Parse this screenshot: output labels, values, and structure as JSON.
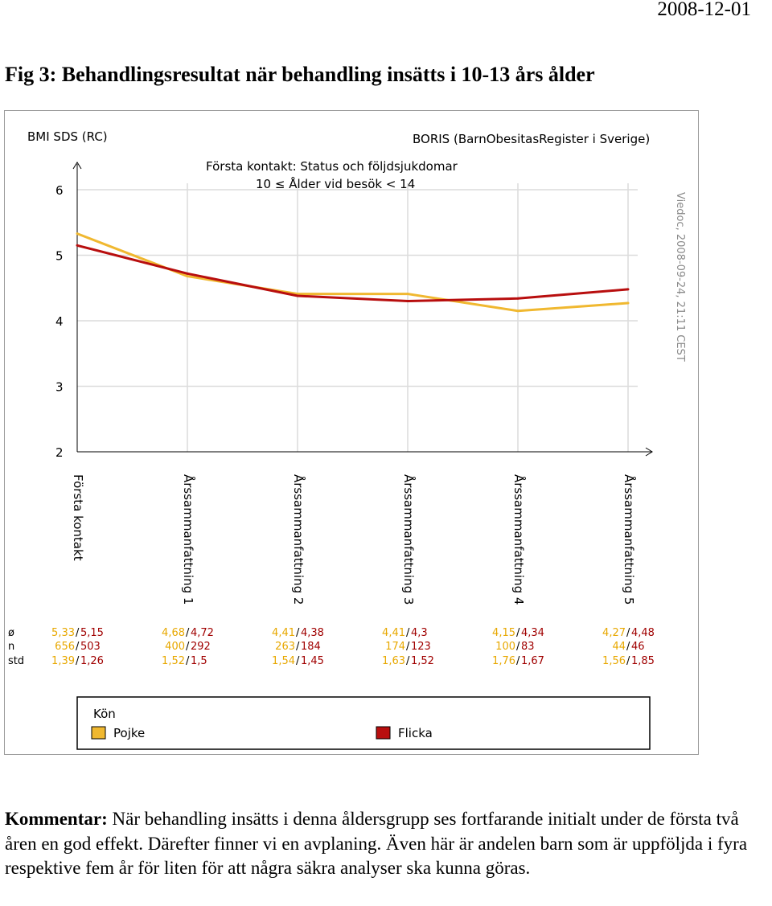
{
  "header": {
    "date": "2008-12-01"
  },
  "figure": {
    "title": "Fig 3: Behandlingsresultat när behandling insätts i 10-13 års ålder"
  },
  "chart_data": {
    "type": "line",
    "ylabel": "BMI SDS (RC)",
    "source": "BORIS (BarnObesitasRegister i Sverige)",
    "subtitle_line1": "Första kontakt: Status och följdsjukdomar",
    "subtitle_line2": "10 ≤  Ålder vid besök  < 14",
    "watermark": "Viedoc, 2008-09-24, 21:11 CEST",
    "ylim": [
      2,
      6.5
    ],
    "yticks": [
      "2",
      "3",
      "4",
      "5",
      "6"
    ],
    "categories": [
      "Första kontakt",
      "Årssammanfattning 1",
      "Årssammanfattning 2",
      "Årssammanfattning 3",
      "Årssammanfattning 4",
      "Årssammanfattning 5"
    ],
    "series": [
      {
        "name": "Pojke",
        "color": "#f0b830",
        "values": [
          5.33,
          4.68,
          4.41,
          4.41,
          4.15,
          4.27
        ]
      },
      {
        "name": "Flicka",
        "color": "#b80e0e",
        "values": [
          5.15,
          4.72,
          4.38,
          4.3,
          4.34,
          4.48
        ]
      }
    ],
    "stats_labels": [
      "ø",
      "n",
      "std"
    ],
    "stats": [
      {
        "mean": [
          "5,33",
          "5,15"
        ],
        "n": [
          "656",
          "503"
        ],
        "std": [
          "1,39",
          "1,26"
        ]
      },
      {
        "mean": [
          "4,68",
          "4,72"
        ],
        "n": [
          "400",
          "292"
        ],
        "std": [
          "1,52",
          "1,5"
        ]
      },
      {
        "mean": [
          "4,41",
          "4,38"
        ],
        "n": [
          "263",
          "184"
        ],
        "std": [
          "1,54",
          "1,45"
        ]
      },
      {
        "mean": [
          "4,41",
          "4,3"
        ],
        "n": [
          "174",
          "123"
        ],
        "std": [
          "1,63",
          "1,52"
        ]
      },
      {
        "mean": [
          "4,15",
          "4,34"
        ],
        "n": [
          "100",
          "83"
        ],
        "std": [
          "1,76",
          "1,67"
        ]
      },
      {
        "mean": [
          "4,27",
          "4,48"
        ],
        "n": [
          "44",
          "46"
        ],
        "std": [
          "1,56",
          "1,85"
        ]
      }
    ],
    "legend": {
      "title": "Kön",
      "position": "bottom"
    },
    "grid": true,
    "stat_colors": {
      "boy": "#e8a800",
      "girl": "#a00000"
    }
  },
  "comment": {
    "label": "Kommentar:",
    "text": " När behandling insätts i denna åldersgrupp ses fortfarande initialt under de första två åren en god effekt. Därefter finner vi en avplaning. Även här är andelen barn som är uppföljda i fyra respektive fem år för liten för att några säkra analyser ska kunna göras."
  }
}
